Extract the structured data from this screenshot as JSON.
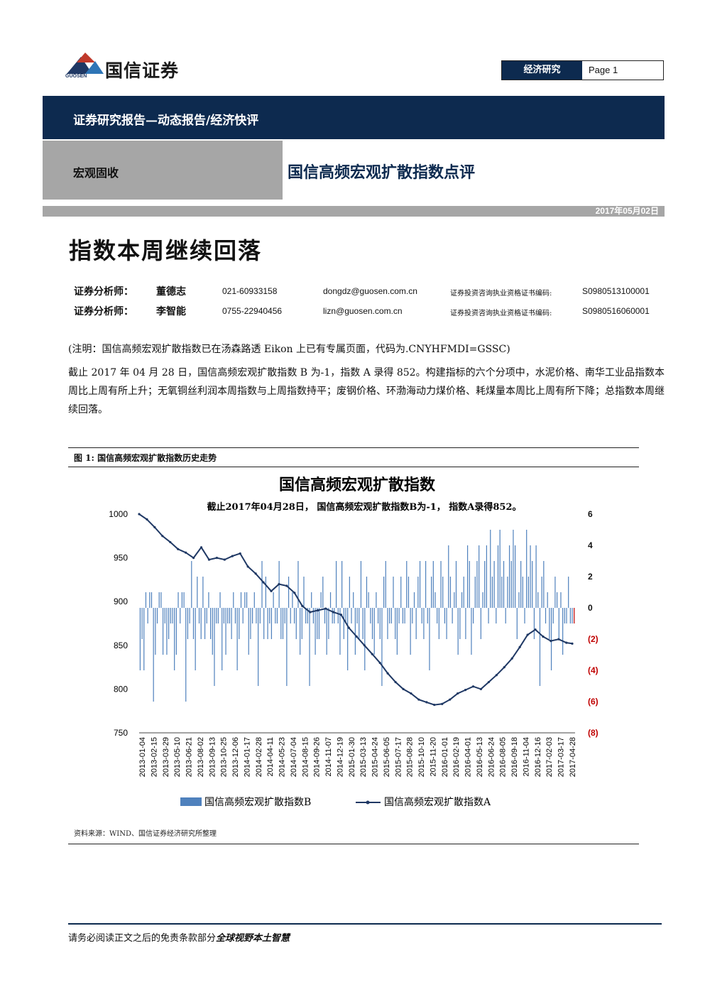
{
  "header": {
    "logo_text": "国信证券",
    "logo_sub": "GUOSEN",
    "section": "经济研究",
    "page": "Page 1"
  },
  "report_type": "证券研究报告—动态报告/经济快评",
  "category": "宏观固收",
  "report_title": "国信高频宏观扩散指数点评",
  "date": "2017年05月02日",
  "headline": "指数本周继续回落",
  "analysts": [
    {
      "label": "证券分析师：",
      "name": "董德志",
      "phone": "021-60933158",
      "email": "dongdz@guosen.com.cn",
      "cert_label": "证券投资咨询执业资格证书编码:",
      "cert": "S0980513100001"
    },
    {
      "label": "证券分析师：",
      "name": "李智能",
      "phone": "0755-22940456",
      "email": "lizn@guosen.com.cn",
      "cert_label": "证券投资咨询执业资格证书编码:",
      "cert": "S0980516060001"
    }
  ],
  "note": "(注明：国信高频宏观扩散指数已在汤森路透 Eikon 上已有专属页面，代码为.CNYHFMDI=GSSC)",
  "paragraph": "截止 2017 年 04 月 28 日，国信高频宏观扩散指数 B 为-1，指数 A 录得 852。构建指标的六个分项中，水泥价格、南华工业品指数本周比上周有所上升；无氧铜丝利润本周指数与上周指数持平；废钢价格、环渤海动力煤价格、耗煤量本周比上周有所下降；总指数本周继续回落。",
  "figure_caption": "图 1:  国信高频宏观扩散指数历史走势",
  "source": "资料来源：WIND、国信证券经济研究所整理",
  "footer": {
    "text": "请务必阅读正文之后的免责条款部分",
    "bold": "全球视野本土智慧"
  },
  "colors": {
    "navy": "#0d2a4f",
    "bar": "#4f81bd",
    "line": "#1f3864",
    "neg": "#c00000"
  },
  "chart_data": {
    "type": "bar+line",
    "title": "国信高频宏观扩散指数",
    "subtitle": "截止2017年04月28日， 国信高频宏观扩散指数B为-1， 指数A录得852。",
    "left_axis": {
      "ylim": [
        750,
        1000
      ],
      "ticks": [
        750,
        800,
        850,
        900,
        950,
        1000
      ]
    },
    "right_axis": {
      "ylim": [
        -8,
        6
      ],
      "ticks": [
        -8,
        -6,
        -4,
        -2,
        0,
        2,
        4,
        6
      ],
      "tick_labels": [
        "(8)",
        "(6)",
        "(4)",
        "(2)",
        "0",
        "2",
        "4",
        "6"
      ]
    },
    "x_tick_labels": [
      "2013-01-04",
      "2013-02-15",
      "2013-03-29",
      "2013-05-10",
      "2013-06-21",
      "2013-08-02",
      "2013-09-13",
      "2013-10-25",
      "2013-12-06",
      "2014-01-17",
      "2014-02-28",
      "2014-04-11",
      "2014-05-23",
      "2014-07-04",
      "2014-08-15",
      "2014-09-26",
      "2014-11-07",
      "2014-12-19",
      "2015-01-30",
      "2015-03-13",
      "2015-04-24",
      "2015-06-05",
      "2015-07-17",
      "2015-08-28",
      "2015-10-10",
      "2015-11-20",
      "2016-01-01",
      "2016-02-19",
      "2016-04-01",
      "2016-05-13",
      "2016-06-24",
      "2016-08-05",
      "2016-09-18",
      "2016-11-04",
      "2016-12-16",
      "2017-02-03",
      "2017-03-17",
      "2017-04-28"
    ],
    "series": [
      {
        "name": "国信高频宏观扩散指数B",
        "axis": "right",
        "type": "bar",
        "values": [
          -4,
          -2,
          -4,
          1,
          -1,
          1,
          1,
          -6,
          -3,
          -1,
          1,
          1,
          -3,
          -1,
          -3,
          -2,
          -1,
          -1,
          -4,
          -3,
          1,
          -1,
          1,
          1,
          -6,
          -2,
          -1,
          3,
          -2,
          -4,
          2,
          -1,
          -2,
          2,
          -2,
          -1,
          1,
          -2,
          -3,
          -5,
          -1,
          -1,
          1,
          -4,
          -1,
          -3,
          -1,
          -1,
          -2,
          1,
          -1,
          -4,
          -2,
          1,
          -1,
          1,
          1,
          -3,
          -2,
          -1,
          1,
          -1,
          -5,
          -1,
          3,
          -2,
          2,
          -2,
          -1,
          -2,
          1,
          -1,
          -1,
          3,
          -2,
          -2,
          -1,
          -5,
          2,
          -1,
          1,
          -1,
          -2,
          3,
          -3,
          -2,
          2,
          -1,
          -1,
          -5,
          1,
          -1,
          -3,
          -2,
          -2,
          1,
          2,
          -1,
          -3,
          -2,
          1,
          -1,
          -1,
          3,
          -1,
          -3,
          3,
          -2,
          -1,
          -4,
          2,
          -1,
          1,
          -3,
          -1,
          -2,
          3,
          -2,
          -4,
          2,
          1,
          -1,
          -2,
          -3,
          1,
          -1,
          -2,
          -5,
          2,
          3,
          -2,
          -1,
          -1,
          2,
          -2,
          -3,
          -1,
          2,
          -1,
          -1,
          3,
          2,
          -3,
          -1,
          1,
          -2,
          2,
          3,
          -1,
          -2,
          3,
          -1,
          -4,
          2,
          3,
          1,
          -1,
          -2,
          3,
          2,
          -1,
          -2,
          4,
          2,
          -1,
          1,
          3,
          -3,
          -2,
          1,
          2,
          -2,
          4,
          3,
          -3,
          -1,
          2,
          3,
          4,
          -2,
          1,
          3,
          4,
          -1,
          5,
          2,
          3,
          -1,
          4,
          5,
          2,
          3,
          -1,
          2,
          4,
          3,
          5,
          4,
          -2,
          1,
          3,
          2,
          -1,
          5,
          2,
          4,
          3,
          -2,
          4,
          1,
          -5,
          2,
          3,
          -1,
          1,
          -2,
          -4,
          -1,
          2,
          1,
          -2,
          1,
          -3,
          -1,
          -1,
          2,
          -1,
          -1,
          -1
        ]
      },
      {
        "name": "国信高频宏观扩散指数A",
        "axis": "left",
        "type": "line",
        "points": [
          [
            0,
            1000
          ],
          [
            4,
            994
          ],
          [
            8,
            985
          ],
          [
            12,
            975
          ],
          [
            16,
            968
          ],
          [
            20,
            960
          ],
          [
            24,
            956
          ],
          [
            28,
            950
          ],
          [
            32,
            962
          ],
          [
            36,
            948
          ],
          [
            40,
            950
          ],
          [
            44,
            948
          ],
          [
            48,
            952
          ],
          [
            52,
            955
          ],
          [
            56,
            940
          ],
          [
            60,
            932
          ],
          [
            64,
            922
          ],
          [
            68,
            912
          ],
          [
            72,
            920
          ],
          [
            76,
            918
          ],
          [
            80,
            910
          ],
          [
            84,
            895
          ],
          [
            88,
            888
          ],
          [
            92,
            890
          ],
          [
            96,
            892
          ],
          [
            100,
            888
          ],
          [
            104,
            885
          ],
          [
            108,
            870
          ],
          [
            112,
            860
          ],
          [
            116,
            850
          ],
          [
            120,
            840
          ],
          [
            124,
            830
          ],
          [
            128,
            818
          ],
          [
            132,
            808
          ],
          [
            136,
            800
          ],
          [
            140,
            795
          ],
          [
            144,
            788
          ],
          [
            148,
            785
          ],
          [
            152,
            782
          ],
          [
            156,
            783
          ],
          [
            160,
            788
          ],
          [
            164,
            795
          ],
          [
            168,
            799
          ],
          [
            172,
            803
          ],
          [
            176,
            800
          ],
          [
            180,
            808
          ],
          [
            184,
            816
          ],
          [
            188,
            825
          ],
          [
            192,
            835
          ],
          [
            196,
            848
          ],
          [
            200,
            862
          ],
          [
            204,
            868
          ],
          [
            208,
            860
          ],
          [
            212,
            855
          ],
          [
            216,
            857
          ],
          [
            220,
            853
          ],
          [
            223,
            852
          ]
        ]
      }
    ]
  }
}
